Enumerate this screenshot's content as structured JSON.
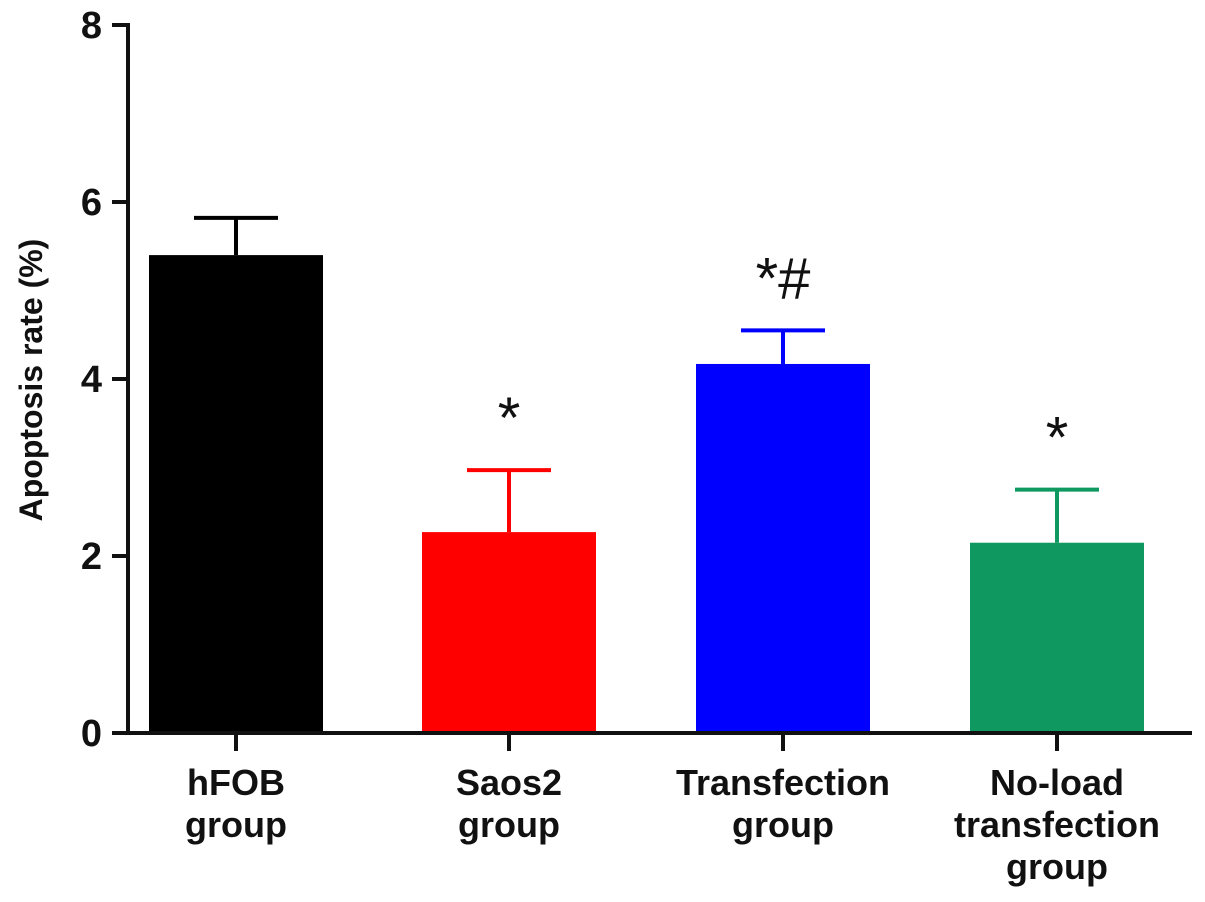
{
  "chart_data": {
    "type": "bar",
    "ylabel": "Apoptosis rate  (%)",
    "ylim": [
      0,
      8
    ],
    "yticks": [
      "0",
      "2",
      "4",
      "6",
      "8"
    ],
    "legend": "none",
    "grid": false,
    "categories": [
      [
        "hFOB",
        "group"
      ],
      [
        "Saos2",
        "group"
      ],
      [
        "Transfection",
        "group"
      ],
      [
        "No-load",
        "transfection",
        "group"
      ]
    ],
    "values": [
      5.4,
      2.27,
      4.17,
      2.15
    ],
    "errors": [
      0.42,
      0.7,
      0.38,
      0.6
    ],
    "colors": [
      "#000000",
      "#ff0000",
      "#0000ff",
      "#0f9960"
    ],
    "annotations": [
      "",
      "*",
      "*#",
      "*"
    ]
  }
}
